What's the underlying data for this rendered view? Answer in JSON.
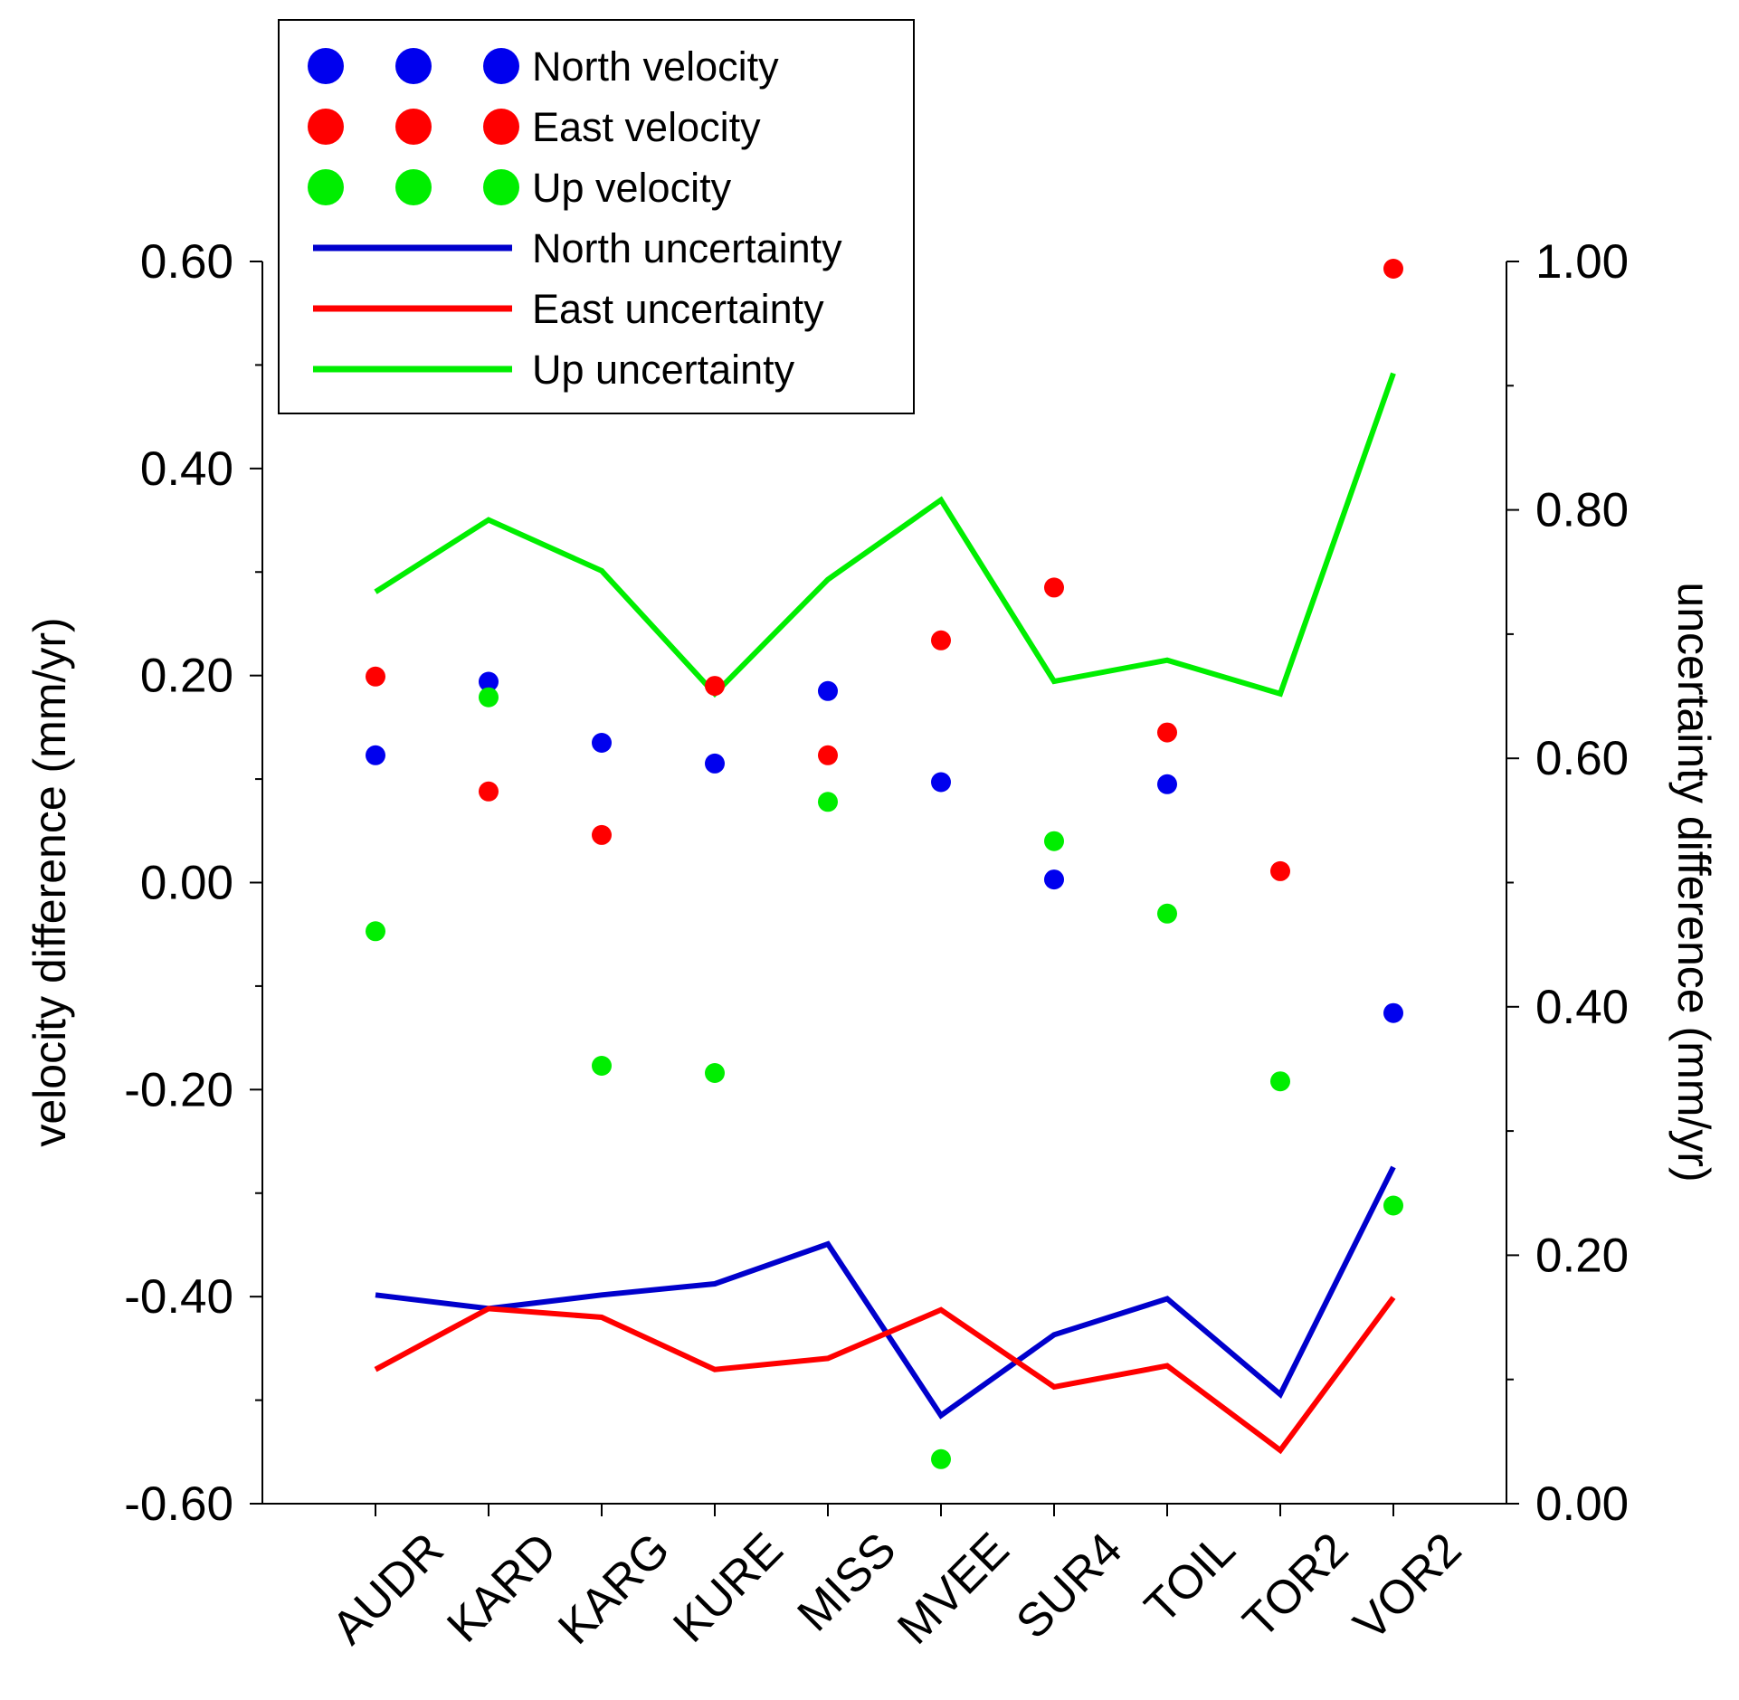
{
  "chart_data": {
    "type": "line+scatter",
    "categories": [
      "AUDR",
      "KARD",
      "KARG",
      "KURE",
      "MISS",
      "MVEE",
      "SUR4",
      "TOIL",
      "TOR2",
      "VOR2"
    ],
    "left_axis": {
      "label": "velocity difference (mm/yr)",
      "range": [
        -0.6,
        0.6
      ],
      "ticks": [
        "0.60",
        "0.40",
        "0.20",
        "0.00",
        "-0.20",
        "-0.40",
        "-0.60"
      ]
    },
    "right_axis": {
      "label": "uncertainty difference (mm/yr)",
      "range": [
        0.0,
        1.0
      ],
      "ticks": [
        "1.00",
        "0.80",
        "0.60",
        "0.40",
        "0.20",
        "0.00"
      ]
    },
    "scatter_series": [
      {
        "name": "North velocity",
        "color": "#0000ee",
        "values": [
          0.123,
          0.194,
          0.135,
          0.115,
          0.185,
          0.097,
          0.003,
          0.095,
          null,
          -0.126
        ]
      },
      {
        "name": "East velocity",
        "color": "#ff0000",
        "values": [
          0.199,
          0.088,
          0.046,
          0.19,
          0.123,
          0.234,
          0.285,
          0.145,
          0.011,
          0.593
        ]
      },
      {
        "name": "Up velocity",
        "color": "#00ee00",
        "values": [
          -0.047,
          0.179,
          -0.177,
          -0.184,
          0.078,
          -0.557,
          0.04,
          -0.03,
          -0.192,
          -0.312
        ]
      }
    ],
    "line_series": [
      {
        "name": "North uncertainty",
        "color": "#0000cc",
        "values": [
          0.168,
          0.157,
          0.168,
          0.177,
          0.209,
          0.071,
          0.136,
          0.165,
          0.088,
          0.271
        ]
      },
      {
        "name": "East uncertainty",
        "color": "#ff0000",
        "values": [
          0.108,
          0.157,
          0.15,
          0.108,
          0.117,
          0.156,
          0.094,
          0.111,
          0.043,
          0.166
        ]
      },
      {
        "name": "Up uncertainty",
        "color": "#00ee00",
        "values": [
          0.734,
          0.792,
          0.751,
          0.652,
          0.744,
          0.808,
          0.662,
          0.679,
          0.652,
          0.91
        ]
      }
    ],
    "legend_position": "top-left",
    "grid": false
  }
}
